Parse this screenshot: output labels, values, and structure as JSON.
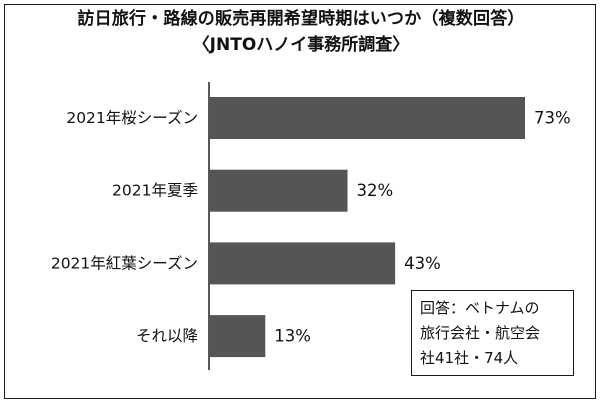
{
  "chart_data": {
    "type": "bar",
    "orientation": "horizontal",
    "title": "訪日旅行・路線の販売再開希望時期はいつか（複数回答）",
    "subtitle": "〈JNTOハノイ事務所調査〉",
    "categories": [
      "2021年桜シーズン",
      "2021年夏季",
      "2021年紅葉シーズン",
      "それ以降"
    ],
    "values": [
      73,
      32,
      43,
      13
    ],
    "value_labels": [
      "73%",
      "32%",
      "43%",
      "13%"
    ],
    "unit": "%",
    "xlim": [
      0,
      100
    ],
    "grid": false,
    "bar_color": "#555555"
  },
  "note": {
    "lines": [
      "回答：ベトナムの",
      "旅行会社・航空会",
      "社41社・74人"
    ]
  }
}
